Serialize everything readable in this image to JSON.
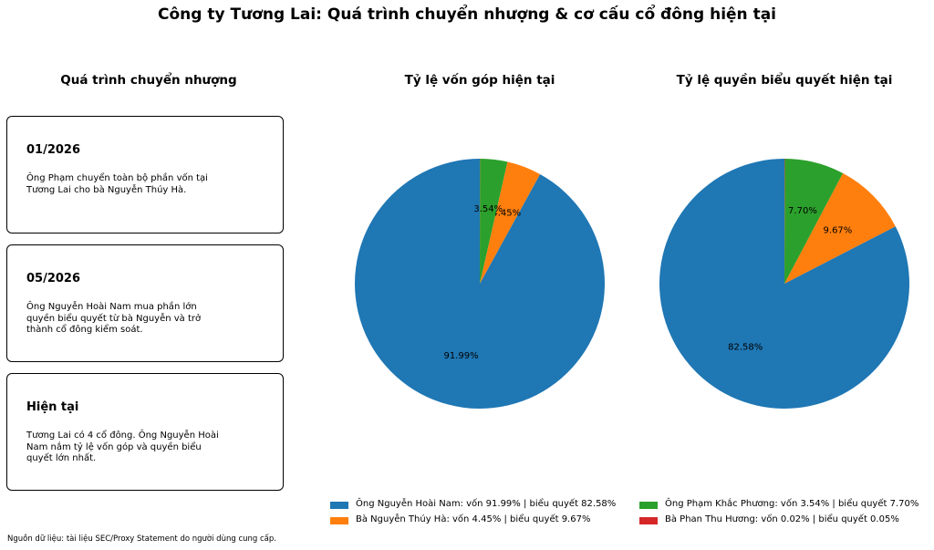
{
  "title": "Công ty Tương Lai: Quá trình chuyển nhượng & cơ cấu cổ đông hiện tại",
  "timeline": {
    "title": "Quá trình chuyển nhượng",
    "events": [
      {
        "date": "01/2026",
        "text": "Ông Phạm chuyển toàn bộ phần vốn tại Tương Lai cho bà Nguyễn Thúy Hà."
      },
      {
        "date": "05/2026",
        "text": "Ông Nguyễn Hoài Nam mua phần lớn quyền biểu quyết từ bà Nguyễn và trở thành cổ đông kiểm soát."
      },
      {
        "date": "Hiện tại",
        "text": "Tương Lai có 4 cổ đông. Ông Nguyễn Hoài Nam nắm tỷ lệ vốn góp và quyền biểu quyết lớn nhất."
      }
    ]
  },
  "chart_data": [
    {
      "type": "pie",
      "title": "Tỷ lệ vốn góp hiện tại",
      "categories": [
        "Ông Nguyễn Hoài Nam",
        "Bà Nguyễn Thúy Hà",
        "Ông Phạm Khắc Phương",
        "Bà Phan Thu Hương"
      ],
      "values": [
        91.99,
        4.45,
        3.54,
        0.02
      ],
      "labels": [
        "91.99%",
        "4.45%",
        "3.54%",
        ""
      ],
      "colors": [
        "#1f77b4",
        "#ff7f0e",
        "#2ca02c",
        "#d62728"
      ]
    },
    {
      "type": "pie",
      "title": "Tỷ lệ quyền biểu quyết hiện tại",
      "categories": [
        "Ông Nguyễn Hoài Nam",
        "Bà Nguyễn Thúy Hà",
        "Ông Phạm Khắc Phương",
        "Bà Phan Thu Hương"
      ],
      "values": [
        82.58,
        9.67,
        7.7,
        0.05
      ],
      "labels": [
        "82.58%",
        "9.67%",
        "7.70%",
        ""
      ],
      "colors": [
        "#1f77b4",
        "#ff7f0e",
        "#2ca02c",
        "#d62728"
      ]
    }
  ],
  "legend": [
    {
      "label": "Ông Nguyễn Hoài Nam: vốn 91.99% | biểu quyết 82.58%",
      "color": "#1f77b4"
    },
    {
      "label": "Bà Nguyễn Thúy Hà: vốn 4.45% | biểu quyết 9.67%",
      "color": "#ff7f0e"
    },
    {
      "label": "Ông Phạm Khắc Phương: vốn 3.54% | biểu quyết 7.70%",
      "color": "#2ca02c"
    },
    {
      "label": "Bà Phan Thu Hương: vốn 0.02% | biểu quyết 0.05%",
      "color": "#d62728"
    }
  ],
  "footnote": "Nguồn dữ liệu: tài liệu SEC/Proxy Statement do người dùng cung cấp."
}
